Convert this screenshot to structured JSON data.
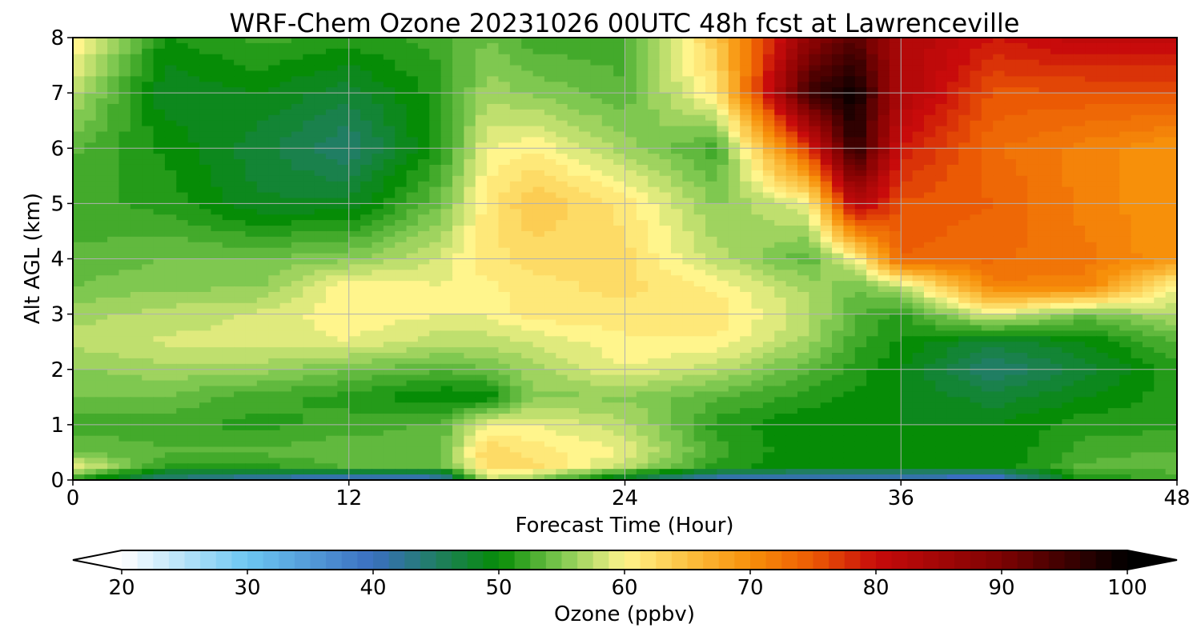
{
  "chart_data": {
    "type": "heatmap",
    "title": "WRF-Chem Ozone  20231026 00UTC 48h fcst at Lawrenceville",
    "xlabel": "Forecast Time (Hour)",
    "ylabel": "Alt AGL (km)",
    "xlim": [
      0,
      48
    ],
    "ylim": [
      0,
      8
    ],
    "xticks": [
      "0",
      "12",
      "24",
      "36",
      "48"
    ],
    "yticks": [
      "0",
      "1",
      "2",
      "3",
      "4",
      "5",
      "6",
      "7",
      "8"
    ],
    "grid": true,
    "colorbar": {
      "label": "Ozone  (ppbv)",
      "min": 20,
      "max": 100,
      "ticks": [
        "20",
        "30",
        "40",
        "50",
        "60",
        "70",
        "80",
        "90",
        "100"
      ],
      "extend": "both",
      "colors": [
        {
          "v": 20,
          "c": "#ffffff"
        },
        {
          "v": 30,
          "c": "#6cc6f2"
        },
        {
          "v": 40,
          "c": "#3a6fc0"
        },
        {
          "v": 50,
          "c": "#068c06"
        },
        {
          "v": 55,
          "c": "#7fc850"
        },
        {
          "v": 60,
          "c": "#fff58c"
        },
        {
          "v": 65,
          "c": "#fbc040"
        },
        {
          "v": 70,
          "c": "#f7900a"
        },
        {
          "v": 75,
          "c": "#eb5a04"
        },
        {
          "v": 80,
          "c": "#c80b0b"
        },
        {
          "v": 90,
          "c": "#7d0202"
        },
        {
          "v": 100,
          "c": "#000000"
        }
      ]
    },
    "hours": [
      0,
      4,
      8,
      12,
      16,
      18,
      20,
      24,
      28,
      32,
      34,
      36,
      40,
      44,
      48
    ],
    "altitudes_km": [
      0,
      0.25,
      0.5,
      1,
      1.5,
      2,
      2.5,
      3,
      3.5,
      4,
      5,
      6,
      7,
      8
    ],
    "values_ppbv": [
      [
        52,
        44,
        41,
        38,
        40,
        58,
        56,
        47,
        40,
        40,
        40,
        40,
        38,
        52,
        52
      ],
      [
        60,
        52,
        52,
        54,
        54,
        63,
        63,
        58,
        52,
        50,
        50,
        50,
        50,
        54,
        55
      ],
      [
        55,
        54,
        54,
        55,
        54,
        64,
        62,
        60,
        53,
        50,
        50,
        50,
        50,
        53,
        54
      ],
      [
        53,
        53,
        52,
        53,
        54,
        60,
        60,
        58,
        52,
        50,
        50,
        50,
        50,
        52,
        52
      ],
      [
        55,
        55,
        53,
        52,
        50,
        50,
        56,
        56,
        54,
        52,
        51,
        50,
        48,
        50,
        52
      ],
      [
        56,
        57,
        57,
        55,
        54,
        55,
        57,
        60,
        58,
        54,
        52,
        50,
        45,
        48,
        52
      ],
      [
        58,
        59,
        59,
        60,
        58,
        58,
        59,
        61,
        61,
        57,
        53,
        51,
        48,
        50,
        54
      ],
      [
        57,
        58,
        59,
        61,
        60,
        60,
        62,
        62,
        62,
        58,
        54,
        52,
        60,
        55,
        58
      ],
      [
        55,
        56,
        56,
        61,
        60,
        61,
        62,
        63,
        61,
        57,
        55,
        58,
        72,
        72,
        60
      ],
      [
        54,
        55,
        55,
        56,
        59,
        62,
        63,
        63,
        58,
        54,
        60,
        75,
        74,
        73,
        70
      ],
      [
        53,
        52,
        49,
        49,
        55,
        62,
        65,
        62,
        56,
        60,
        84,
        76,
        75,
        72,
        70
      ],
      [
        54,
        51,
        48,
        45,
        52,
        60,
        61,
        57,
        53,
        78,
        98,
        80,
        74,
        72,
        70
      ],
      [
        58,
        49,
        50,
        48,
        52,
        57,
        56,
        54,
        62,
        96,
        100,
        84,
        76,
        76,
        76
      ],
      [
        62,
        51,
        53,
        52,
        53,
        55,
        53,
        53,
        65,
        88,
        94,
        84,
        80,
        82,
        82
      ]
    ]
  }
}
